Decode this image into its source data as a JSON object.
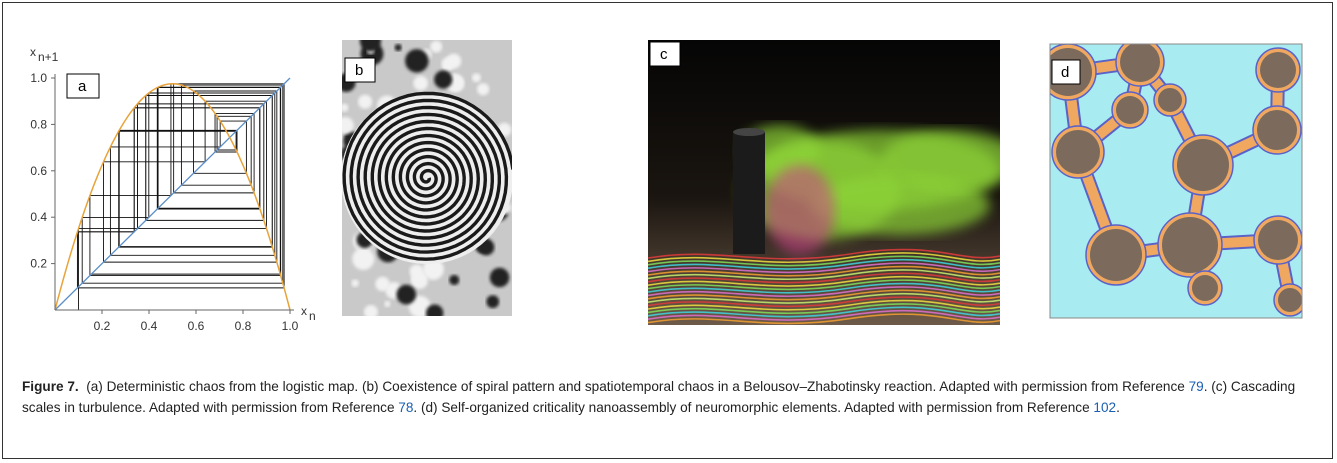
{
  "panels": {
    "a": {
      "label": "a",
      "y_axis_label": {
        "main": "x",
        "sub": "n+1"
      },
      "x_axis_label": {
        "main": "x",
        "sub": "n"
      },
      "xticks": [
        0.2,
        0.4,
        0.6,
        0.8,
        {
          "value": 1,
          "label": "1.0"
        }
      ],
      "yticks": [
        0.2,
        0.4,
        0.6,
        0.8,
        {
          "value": 1,
          "label": "1.0"
        }
      ]
    },
    "b": {
      "label": "b"
    },
    "c": {
      "label": "c"
    },
    "d": {
      "label": "d"
    }
  },
  "caption": {
    "label": "Figure 7.",
    "segments": [
      "(a) Deterministic chaos from the logistic map. (b) Coexistence of spiral pattern and spatiotemporal chaos in a Belousov–Zhabotinsky reaction. Adapted with permission from Reference ",
      "79",
      ". (c) Cascading scales in turbulence. Adapted with permission from Reference ",
      "78",
      ". (d) Self-organized criticality nanoassembly of neuromorphic elements. Adapted with permission from Reference ",
      "102",
      "."
    ]
  }
}
